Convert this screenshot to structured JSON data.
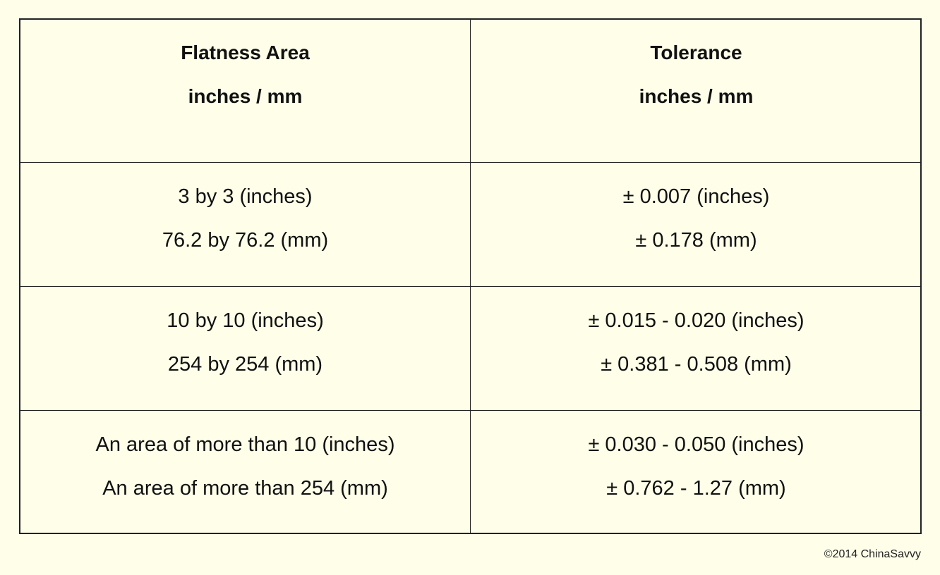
{
  "table": {
    "headers": {
      "area": {
        "line1": "Flatness Area",
        "line2": "inches / mm"
      },
      "tolerance": {
        "line1": "Tolerance",
        "line2": "inches / mm"
      }
    },
    "rows": [
      {
        "area": {
          "line1": "3 by 3 (inches)",
          "line2": "76.2 by 76.2 (mm)"
        },
        "tolerance": {
          "line1": "±  0.007 (inches)",
          "line2": "± 0.178 (mm)"
        }
      },
      {
        "area": {
          "line1": "10 by 10 (inches)",
          "line2": "254 by 254 (mm)"
        },
        "tolerance": {
          "line1": "± 0.015 - 0.020 (inches)",
          "line2": "± 0.381 - 0.508 (mm)"
        }
      },
      {
        "area": {
          "line1": "An area of more than 10 (inches)",
          "line2": "An area of more than 254 (mm)"
        },
        "tolerance": {
          "line1": "± 0.030 - 0.050 (inches)",
          "line2": "± 0.762 - 1.27 (mm)"
        }
      }
    ]
  },
  "footer": {
    "copyright": "©2014 ChinaSavvy"
  }
}
